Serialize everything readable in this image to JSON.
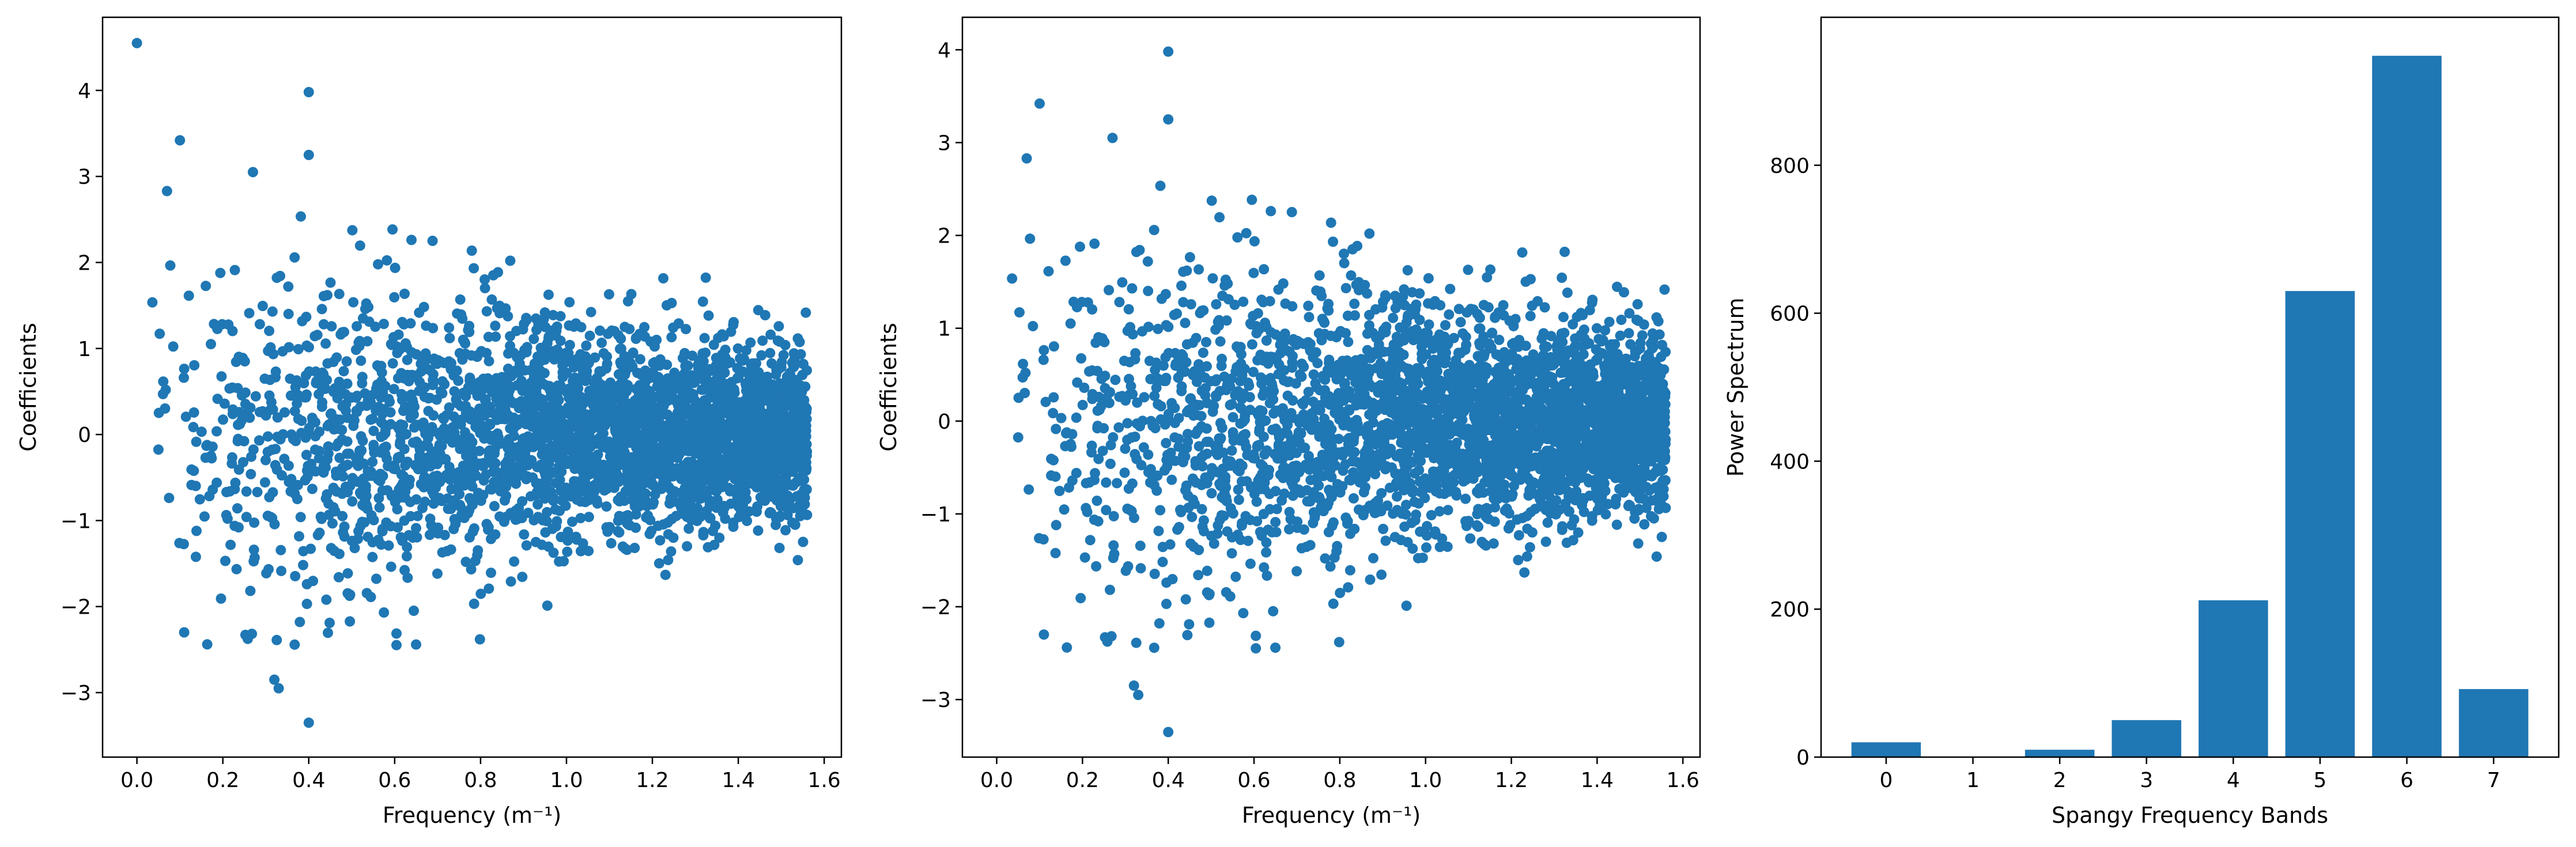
{
  "chart_data": [
    {
      "type": "scatter",
      "title": "",
      "xlabel": "Frequency (m⁻¹)",
      "ylabel": "Coefficients",
      "xlim": [
        -0.08,
        1.64
      ],
      "ylim": [
        -3.75,
        4.85
      ],
      "xticks": [
        0.0,
        0.2,
        0.4,
        0.6,
        0.8,
        1.0,
        1.2,
        1.4,
        1.6
      ],
      "xtick_labels": [
        "0.0",
        "0.2",
        "0.4",
        "0.6",
        "0.8",
        "1.0",
        "1.2",
        "1.4",
        "1.6"
      ],
      "yticks": [
        -3,
        -2,
        -1,
        0,
        1,
        2,
        3,
        4
      ],
      "ytick_labels": [
        "−3",
        "−2",
        "−1",
        "0",
        "1",
        "2",
        "3",
        "4"
      ],
      "color": "#1f77b4",
      "grid": false,
      "x_range": [
        0.0,
        1.56
      ],
      "point_count": 3200,
      "highlighted_points": [
        {
          "x": 0.0,
          "y": 4.55
        },
        {
          "x": 0.4,
          "y": 3.98
        },
        {
          "x": 0.4,
          "y": 3.25
        },
        {
          "x": 0.1,
          "y": 3.42
        },
        {
          "x": 0.27,
          "y": 3.05
        },
        {
          "x": 0.07,
          "y": 2.83
        },
        {
          "x": 0.4,
          "y": -3.35
        },
        {
          "x": 0.32,
          "y": -2.85
        },
        {
          "x": 0.33,
          "y": -2.95
        },
        {
          "x": 0.11,
          "y": -2.3
        }
      ]
    },
    {
      "type": "scatter",
      "title": "",
      "xlabel": "Frequency (m⁻¹)",
      "ylabel": "Coefficients",
      "xlim": [
        -0.08,
        1.64
      ],
      "ylim": [
        -3.62,
        4.35
      ],
      "xticks": [
        0.0,
        0.2,
        0.4,
        0.6,
        0.8,
        1.0,
        1.2,
        1.4,
        1.6
      ],
      "xtick_labels": [
        "0.0",
        "0.2",
        "0.4",
        "0.6",
        "0.8",
        "1.0",
        "1.2",
        "1.4",
        "1.6"
      ],
      "yticks": [
        -3,
        -2,
        -1,
        0,
        1,
        2,
        3,
        4
      ],
      "ytick_labels": [
        "−3",
        "−2",
        "−1",
        "0",
        "1",
        "2",
        "3",
        "4"
      ],
      "color": "#1f77b4",
      "grid": false,
      "x_range": [
        0.0,
        1.56
      ],
      "point_count": 3200,
      "highlighted_points": [
        {
          "x": 0.4,
          "y": 3.98
        },
        {
          "x": 0.4,
          "y": 3.25
        },
        {
          "x": 0.1,
          "y": 3.42
        },
        {
          "x": 0.27,
          "y": 3.05
        },
        {
          "x": 0.07,
          "y": 2.83
        },
        {
          "x": 0.4,
          "y": -3.35
        },
        {
          "x": 0.32,
          "y": -2.85
        },
        {
          "x": 0.33,
          "y": -2.95
        },
        {
          "x": 0.11,
          "y": -2.3
        }
      ]
    },
    {
      "type": "bar",
      "title": "",
      "xlabel": "Spangy Frequency Bands",
      "ylabel": "Power Spectrum",
      "categories": [
        "0",
        "1",
        "2",
        "3",
        "4",
        "5",
        "6",
        "7"
      ],
      "values": [
        20,
        0,
        10,
        50,
        212,
        630,
        948,
        92
      ],
      "xlim": [
        -0.75,
        7.75
      ],
      "ylim": [
        0,
        1000
      ],
      "yticks": [
        0,
        200,
        400,
        600,
        800
      ],
      "ytick_labels": [
        "0",
        "200",
        "400",
        "600",
        "800"
      ],
      "color": "#1f77b4",
      "grid": false
    }
  ]
}
